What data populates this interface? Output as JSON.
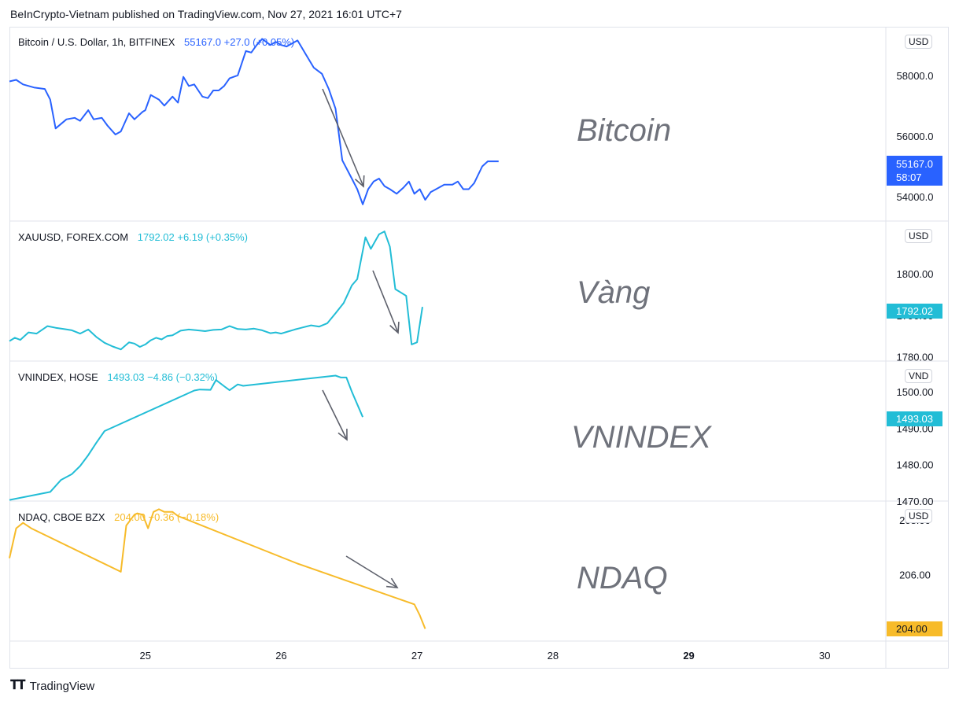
{
  "header": {
    "credit": "BeInCrypto-Vietnam published on TradingView.com, Nov 27, 2021 16:01 UTC+7"
  },
  "footer": {
    "brand": "TradingView",
    "logo_icon": "tradingview-logo-icon"
  },
  "colors": {
    "bitcoin": "#2962ff",
    "gold": "#22bdd6",
    "vnindex": "#22bdd6",
    "ndaq": "#f7bb2a",
    "arrow": "#5d606b",
    "grid": "#e0e3eb"
  },
  "chart_data": [
    {
      "type": "line",
      "symbol": "Bitcoin / U.S. Dollar, 1h, BITFINEX",
      "quote": "55167.0  +27.0 (+0.05%)",
      "watermark": "Bitcoin",
      "currency": "USD",
      "last_price": "55167.0",
      "countdown": "58:07",
      "ylim": [
        53200,
        59600
      ],
      "yticks": [
        "58000.0",
        "56000.0",
        "54000.0"
      ],
      "ytick_values": [
        58000,
        56000,
        54000
      ],
      "x": [
        24.0,
        24.05,
        24.1,
        24.18,
        24.26,
        24.3,
        24.34,
        24.42,
        24.48,
        24.52,
        24.58,
        24.62,
        24.68,
        24.72,
        24.78,
        24.82,
        24.88,
        24.92,
        24.98,
        25.0,
        25.04,
        25.1,
        25.14,
        25.2,
        25.24,
        25.28,
        25.32,
        25.36,
        25.42,
        25.46,
        25.5,
        25.54,
        25.58,
        25.62,
        25.68,
        25.74,
        25.78,
        25.82,
        25.86,
        25.92,
        25.96,
        26.0,
        26.04,
        26.08,
        26.12,
        26.18,
        26.24,
        26.3,
        26.35,
        26.4,
        26.45,
        26.52,
        26.56,
        26.6,
        26.64,
        26.68,
        26.72,
        26.76,
        26.8,
        26.85,
        26.9,
        26.94,
        26.98,
        27.02,
        27.06,
        27.1,
        27.14,
        27.2,
        27.26,
        27.3,
        27.34,
        27.38,
        27.42,
        27.48,
        27.52,
        27.56,
        27.6
      ],
      "y": [
        57800,
        57850,
        57700,
        57600,
        57550,
        57200,
        56250,
        56550,
        56600,
        56500,
        56850,
        56550,
        56600,
        56350,
        56050,
        56150,
        56750,
        56550,
        56800,
        56850,
        57350,
        57200,
        57000,
        57300,
        57100,
        57950,
        57650,
        57700,
        57300,
        57250,
        57500,
        57500,
        57650,
        57900,
        58000,
        58800,
        58750,
        59000,
        59200,
        59000,
        59100,
        59000,
        58950,
        59050,
        59150,
        58700,
        58250,
        58050,
        57550,
        56900,
        55200,
        54600,
        54250,
        53750,
        54250,
        54500,
        54600,
        54350,
        54250,
        54100,
        54300,
        54500,
        54100,
        54250,
        53900,
        54150,
        54250,
        54400,
        54400,
        54500,
        54250,
        54250,
        54450,
        55000,
        55167,
        55167,
        55167
      ]
    },
    {
      "type": "line",
      "symbol": "XAUUSD, FOREX.COM",
      "quote": "1792.02  +6.19 (+0.35%)",
      "watermark": "Vàng",
      "currency": "USD",
      "last_price": "1792.02",
      "ylim": [
        1779,
        1812.7
      ],
      "yticks": [
        "1800.00",
        "1790.00",
        "1780.00"
      ],
      "ytick_values": [
        1800,
        1790,
        1780
      ],
      "x": [
        24.0,
        24.04,
        24.08,
        24.14,
        24.2,
        24.28,
        24.34,
        24.4,
        24.46,
        24.52,
        24.58,
        24.64,
        24.7,
        24.76,
        24.82,
        24.88,
        24.92,
        24.96,
        25.0,
        25.04,
        25.08,
        25.12,
        25.16,
        25.2,
        25.26,
        25.32,
        25.38,
        25.44,
        25.5,
        25.56,
        25.62,
        25.68,
        25.74,
        25.8,
        25.86,
        25.92,
        25.96,
        26.0,
        26.04,
        26.1,
        26.16,
        26.22,
        26.28,
        26.34,
        26.4,
        26.46,
        26.52,
        26.56,
        26.62,
        26.66,
        26.72,
        26.76,
        26.8,
        26.84,
        26.88,
        26.92,
        26.96,
        27.0,
        27.04
      ],
      "y": [
        1783.8,
        1784.6,
        1784.1,
        1785.9,
        1785.6,
        1787.4,
        1787.0,
        1786.7,
        1786.4,
        1785.6,
        1786.6,
        1784.8,
        1783.4,
        1782.5,
        1781.8,
        1783.5,
        1783.2,
        1782.4,
        1783.0,
        1784.0,
        1784.6,
        1784.2,
        1785.0,
        1785.2,
        1786.3,
        1786.6,
        1786.4,
        1786.2,
        1786.5,
        1786.6,
        1787.4,
        1786.7,
        1786.6,
        1786.8,
        1786.4,
        1785.7,
        1785.9,
        1785.6,
        1786.0,
        1786.6,
        1787.1,
        1787.6,
        1787.3,
        1788.1,
        1790.5,
        1793.0,
        1797.2,
        1798.7,
        1808.8,
        1806.0,
        1809.5,
        1810.2,
        1806.5,
        1796.3,
        1795.5,
        1794.7,
        1783.0,
        1783.5,
        1792.02
      ]
    },
    {
      "type": "line",
      "symbol": "VNINDEX, HOSE",
      "quote": "1493.03  −4.86 (−0.32%)",
      "watermark": "VNINDEX",
      "currency": "VND",
      "last_price": "1493.03",
      "ylim": [
        1470,
        1508.4
      ],
      "yticks": [
        "1500.00",
        "1490.00",
        "1480.00",
        "1470.00"
      ],
      "ytick_values": [
        1500,
        1490,
        1480,
        1470
      ],
      "x": [
        24.0,
        24.3,
        24.38,
        24.46,
        24.52,
        24.58,
        24.64,
        24.7,
        25.36,
        25.4,
        25.48,
        25.52,
        25.58,
        25.62,
        25.68,
        25.72,
        26.4,
        26.44,
        26.48,
        26.52,
        26.6
      ],
      "y": [
        1470.3,
        1472.5,
        1475.8,
        1477.4,
        1479.6,
        1482.6,
        1486.0,
        1489.2,
        1500.3,
        1500.6,
        1500.5,
        1503.2,
        1501.5,
        1500.4,
        1502.0,
        1501.6,
        1504.4,
        1503.9,
        1503.9,
        1500.0,
        1493.03
      ]
    },
    {
      "type": "line",
      "symbol": "NDAQ, CBOE BZX",
      "quote": "204.00  −0.36 (−0.18%)",
      "watermark": "NDAQ",
      "currency": "USD",
      "last_price": "204.00",
      "ylim": [
        203.55,
        208.7
      ],
      "yticks": [
        "208.00",
        "206.00",
        "204.00"
      ],
      "ytick_values": [
        208,
        206,
        204
      ],
      "x": [
        24.0,
        24.05,
        24.1,
        24.16,
        24.82,
        24.86,
        24.92,
        24.94,
        24.98,
        25.02,
        25.06,
        25.1,
        25.14,
        25.2,
        25.24,
        26.12,
        26.98,
        27.02,
        27.06
      ],
      "y": [
        206.6,
        207.7,
        207.9,
        207.7,
        206.1,
        207.8,
        208.2,
        208.25,
        208.2,
        207.7,
        208.3,
        208.4,
        208.3,
        208.3,
        208.15,
        206.4,
        204.9,
        204.5,
        204.0
      ]
    }
  ],
  "time_axis": {
    "ticks": [
      "25",
      "26",
      "27",
      "28",
      "29",
      "30"
    ],
    "tick_values": [
      25,
      26,
      27,
      28,
      29,
      30
    ],
    "bold": [
      false,
      false,
      false,
      false,
      true,
      false
    ],
    "range": [
      24.0,
      30.45
    ]
  }
}
